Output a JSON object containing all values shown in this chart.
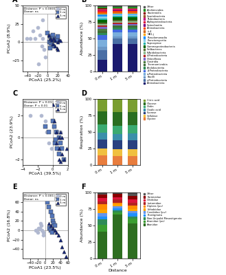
{
  "panel_A": {
    "label": "A",
    "xlabel": "PCoA1 (25.2%)",
    "ylabel": "PCoA2 (8.9%)",
    "xlim": [
      -50,
      40
    ],
    "ylim": [
      -40,
      50
    ],
    "xticks": [
      -40,
      -20,
      0,
      20,
      40
    ],
    "yticks": [
      -25,
      0,
      25,
      50
    ],
    "annotation": "Distance: P < 0.0001\nDonor: ns",
    "groups": {
      "0m": {
        "marker": "o",
        "color": "#b0b8d0",
        "size": 14,
        "x": [
          -10,
          -15,
          -20,
          -12,
          -30,
          -35,
          -42,
          -8,
          -5,
          -18,
          -25,
          -10,
          -15
        ],
        "y": [
          5,
          10,
          20,
          -5,
          15,
          5,
          5,
          -10,
          -20,
          -30,
          5,
          30,
          45
        ]
      },
      "1m": {
        "marker": "s",
        "color": "#5577bb",
        "size": 14,
        "x": [
          0,
          5,
          8,
          10,
          12,
          15,
          3,
          6,
          10,
          18,
          20,
          5,
          8
        ],
        "y": [
          12,
          8,
          5,
          10,
          5,
          3,
          0,
          -2,
          -5,
          2,
          8,
          -8,
          2
        ]
      },
      "5m": {
        "marker": "^",
        "color": "#112277",
        "size": 14,
        "x": [
          2,
          5,
          8,
          12,
          15,
          20,
          22,
          10,
          15,
          18,
          20,
          25
        ],
        "y": [
          10,
          5,
          3,
          5,
          2,
          0,
          3,
          -3,
          -5,
          -8,
          -10,
          2
        ]
      }
    }
  },
  "panel_B": {
    "label": "B",
    "ylabel": "Abundance (%)",
    "categories": [
      "0 m",
      "1 m",
      "5 m"
    ],
    "legend_labels": [
      "Actinobacteria",
      "γ-Proteobacteria",
      "Bacilli",
      "α-Proteobacteria",
      "β-Proteobacteria",
      "Acidobacteriia",
      "Thermomicrobia",
      "Clostridia",
      "Chloroflexia",
      "4-Proteobacteria",
      "δ-Acidobacteria",
      "Solibacteres",
      "Gammaproteobacteria",
      "Saprospirae",
      "Planctomycetia",
      "Pseudomonadia",
      "NB1-j",
      "iii.4",
      "Actinobacteria",
      "Spirochaetia",
      "Alphaproteobacteria",
      "Rubrobacteria",
      "Spartobacteria",
      "Bacteroidia",
      "Acidimicrobia",
      "Other"
    ],
    "colors": [
      "#1a1a6e",
      "#4a6fa5",
      "#6b97c7",
      "#7aaedc",
      "#4169e1",
      "#2e8b57",
      "#3d6b35",
      "#4a7c3f",
      "#7b68c8",
      "#b22222",
      "#8fbc8f",
      "#556b2f",
      "#006400",
      "#20b2aa",
      "#87ceeb",
      "#1e90ff",
      "#ffa500",
      "#d2691e",
      "#ff4500",
      "#800080",
      "#dc143c",
      "#c71585",
      "#a0522d",
      "#8b0000",
      "#228b22",
      "#555555"
    ],
    "values_0m": [
      18,
      15,
      5,
      10,
      8,
      3,
      3,
      3,
      3,
      2,
      3,
      2,
      4,
      2,
      3,
      3,
      1,
      1,
      2,
      1,
      2,
      1,
      1,
      1,
      2,
      2
    ],
    "values_1m": [
      45,
      8,
      4,
      6,
      5,
      3,
      2,
      2,
      2,
      2,
      2,
      2,
      5,
      2,
      2,
      2,
      1,
      1,
      2,
      1,
      1,
      1,
      1,
      1,
      2,
      2
    ],
    "values_5m": [
      45,
      8,
      4,
      6,
      5,
      3,
      2,
      2,
      2,
      2,
      2,
      2,
      5,
      2,
      2,
      2,
      1,
      1,
      2,
      1,
      1,
      1,
      1,
      1,
      2,
      2
    ]
  },
  "panel_C": {
    "label": "C",
    "xlabel": "PCoA1 (39.5%)",
    "ylabel": "PCoA2 (23.9%)",
    "xlim": [
      -4,
      2
    ],
    "ylim": [
      -2.5,
      3.5
    ],
    "xticks": [
      -4,
      -2,
      0,
      2
    ],
    "yticks": [
      -2,
      0,
      2
    ],
    "annotation": "Distance: P < 0.01\nDonor: P < 0.01",
    "groups": {
      "0m": {
        "marker": "o",
        "color": "#b0b8d0",
        "size": 14,
        "x": [
          -3.5,
          -3.0,
          -1.5,
          -1.0,
          -0.8,
          0.0,
          0.2,
          0.5,
          0.8,
          1.0,
          -0.5,
          0.5,
          -0.2
        ],
        "y": [
          3.0,
          2.0,
          2.0,
          1.5,
          0.5,
          1.5,
          1.0,
          0.5,
          0.5,
          0.5,
          -0.5,
          -0.5,
          -1.0
        ]
      },
      "1m": {
        "marker": "s",
        "color": "#5577bb",
        "size": 14,
        "x": [
          -1.0,
          -0.5,
          0.0,
          0.2,
          0.5,
          0.8,
          0.3,
          0.6,
          1.0,
          1.2,
          0.8,
          1.5,
          0.4
        ],
        "y": [
          1.0,
          0.5,
          1.5,
          1.0,
          0.5,
          0.0,
          -0.5,
          -1.0,
          -0.5,
          -1.0,
          -1.5,
          -2.0,
          -0.2
        ]
      },
      "5m": {
        "marker": "^",
        "color": "#112277",
        "size": 14,
        "x": [
          0.0,
          0.2,
          0.5,
          0.8,
          1.0,
          1.2,
          0.5,
          0.8,
          1.2,
          1.5,
          0.8,
          1.8,
          1.0
        ],
        "y": [
          3.0,
          1.5,
          0.5,
          0.0,
          0.5,
          0.0,
          -0.5,
          -1.0,
          -1.5,
          -2.0,
          -2.0,
          -1.0,
          -2.2
        ]
      }
    }
  },
  "panel_D": {
    "label": "D",
    "ylabel": "Respiration (%)",
    "categories": [
      "0 m",
      "1 m",
      "5 m"
    ],
    "legend_labels": [
      "Glycine",
      "Cellulose",
      "Sucrose",
      "Oxalic acid",
      "Chitin",
      "Glucose",
      "Citric acid"
    ],
    "colors": [
      "#e87d3e",
      "#f0c040",
      "#2a4080",
      "#3a8faa",
      "#3aaa70",
      "#2a6e20",
      "#7a9e30"
    ],
    "values_0m": [
      15,
      10,
      14,
      10,
      12,
      20,
      19
    ],
    "values_1m": [
      14,
      10,
      14,
      9,
      12,
      21,
      20
    ],
    "values_5m": [
      14,
      10,
      14,
      10,
      12,
      20,
      20
    ]
  },
  "panel_E": {
    "label": "E",
    "xlabel": "PCoA1 (23.5%)",
    "ylabel": "PCoA2 (16.8%)",
    "xlim": [
      -60,
      60
    ],
    "ylim": [
      -60,
      80
    ],
    "xticks": [
      -40,
      -20,
      0,
      20,
      40,
      60
    ],
    "yticks": [
      -40,
      -20,
      0,
      20,
      40,
      60
    ],
    "annotation": "Distance: P < 0.001\nDonor: ns",
    "groups": {
      "0m": {
        "marker": "o",
        "color": "#b0b8d0",
        "size": 14,
        "x": [
          -10,
          -15,
          -20,
          -8,
          -5,
          -12,
          -18,
          -5,
          -25
        ],
        "y": [
          10,
          5,
          -5,
          0,
          -5,
          15,
          5,
          -10,
          0
        ]
      },
      "1m": {
        "marker": "s",
        "color": "#5577bb",
        "size": 14,
        "x": [
          5,
          10,
          15,
          18,
          20,
          22,
          25,
          12,
          15,
          18
        ],
        "y": [
          60,
          50,
          40,
          30,
          20,
          15,
          10,
          5,
          0,
          -5
        ]
      },
      "5m": {
        "marker": "^",
        "color": "#112277",
        "size": 14,
        "x": [
          10,
          15,
          20,
          25,
          30,
          35,
          40,
          45,
          50,
          55
        ],
        "y": [
          15,
          10,
          5,
          0,
          -5,
          -10,
          -20,
          -35,
          -45,
          -55
        ]
      }
    }
  },
  "panel_F": {
    "label": "F",
    "ylabel": "Abundance (%)",
    "xlabel": "Distance",
    "categories": [
      "0 m",
      "1 m",
      "5 m"
    ],
    "legend_labels": [
      "Aranidae",
      "Aranidae (juv)",
      "Non-Unipalid Mesostigmata",
      "Prostigmata",
      "Carabidae (juv)",
      "Lithobiidae",
      "Diptera (juv)",
      "Isotomidae",
      "Orbitidae",
      "Formicidae",
      "Other"
    ],
    "colors": [
      "#2d6e20",
      "#3a9e30",
      "#2e8b57",
      "#1e90ff",
      "#6495ed",
      "#ffa500",
      "#ff8c00",
      "#b22222",
      "#dc143c",
      "#8b0000",
      "#555555"
    ],
    "values_0m": [
      41,
      10,
      8,
      5,
      5,
      5,
      8,
      5,
      5,
      5,
      3
    ],
    "values_1m": [
      67,
      3,
      3,
      3,
      3,
      3,
      3,
      5,
      3,
      5,
      2
    ],
    "values_5m": [
      53,
      8,
      3,
      5,
      3,
      3,
      5,
      5,
      5,
      5,
      5
    ]
  }
}
